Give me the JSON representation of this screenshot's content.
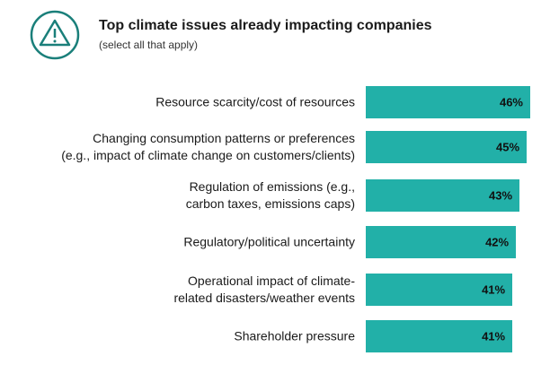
{
  "chart_data": {
    "type": "bar",
    "orientation": "horizontal",
    "title": "Top climate issues already impacting companies",
    "subtitle": "(select all that apply)",
    "categories": [
      "Resource scarcity/cost of resources",
      "Changing consumption patterns or preferences\n(e.g., impact of climate change on customers/clients)",
      "Regulation of emissions (e.g.,\ncarbon taxes, emissions caps)",
      "Regulatory/political uncertainty",
      "Operational impact of climate-\nrelated disasters/weather events",
      "Shareholder pressure"
    ],
    "values": [
      46,
      45,
      43,
      42,
      41,
      41
    ],
    "value_labels": [
      "46%",
      "45%",
      "43%",
      "42%",
      "41%",
      "41%"
    ],
    "color": "#22b0a8"
  }
}
